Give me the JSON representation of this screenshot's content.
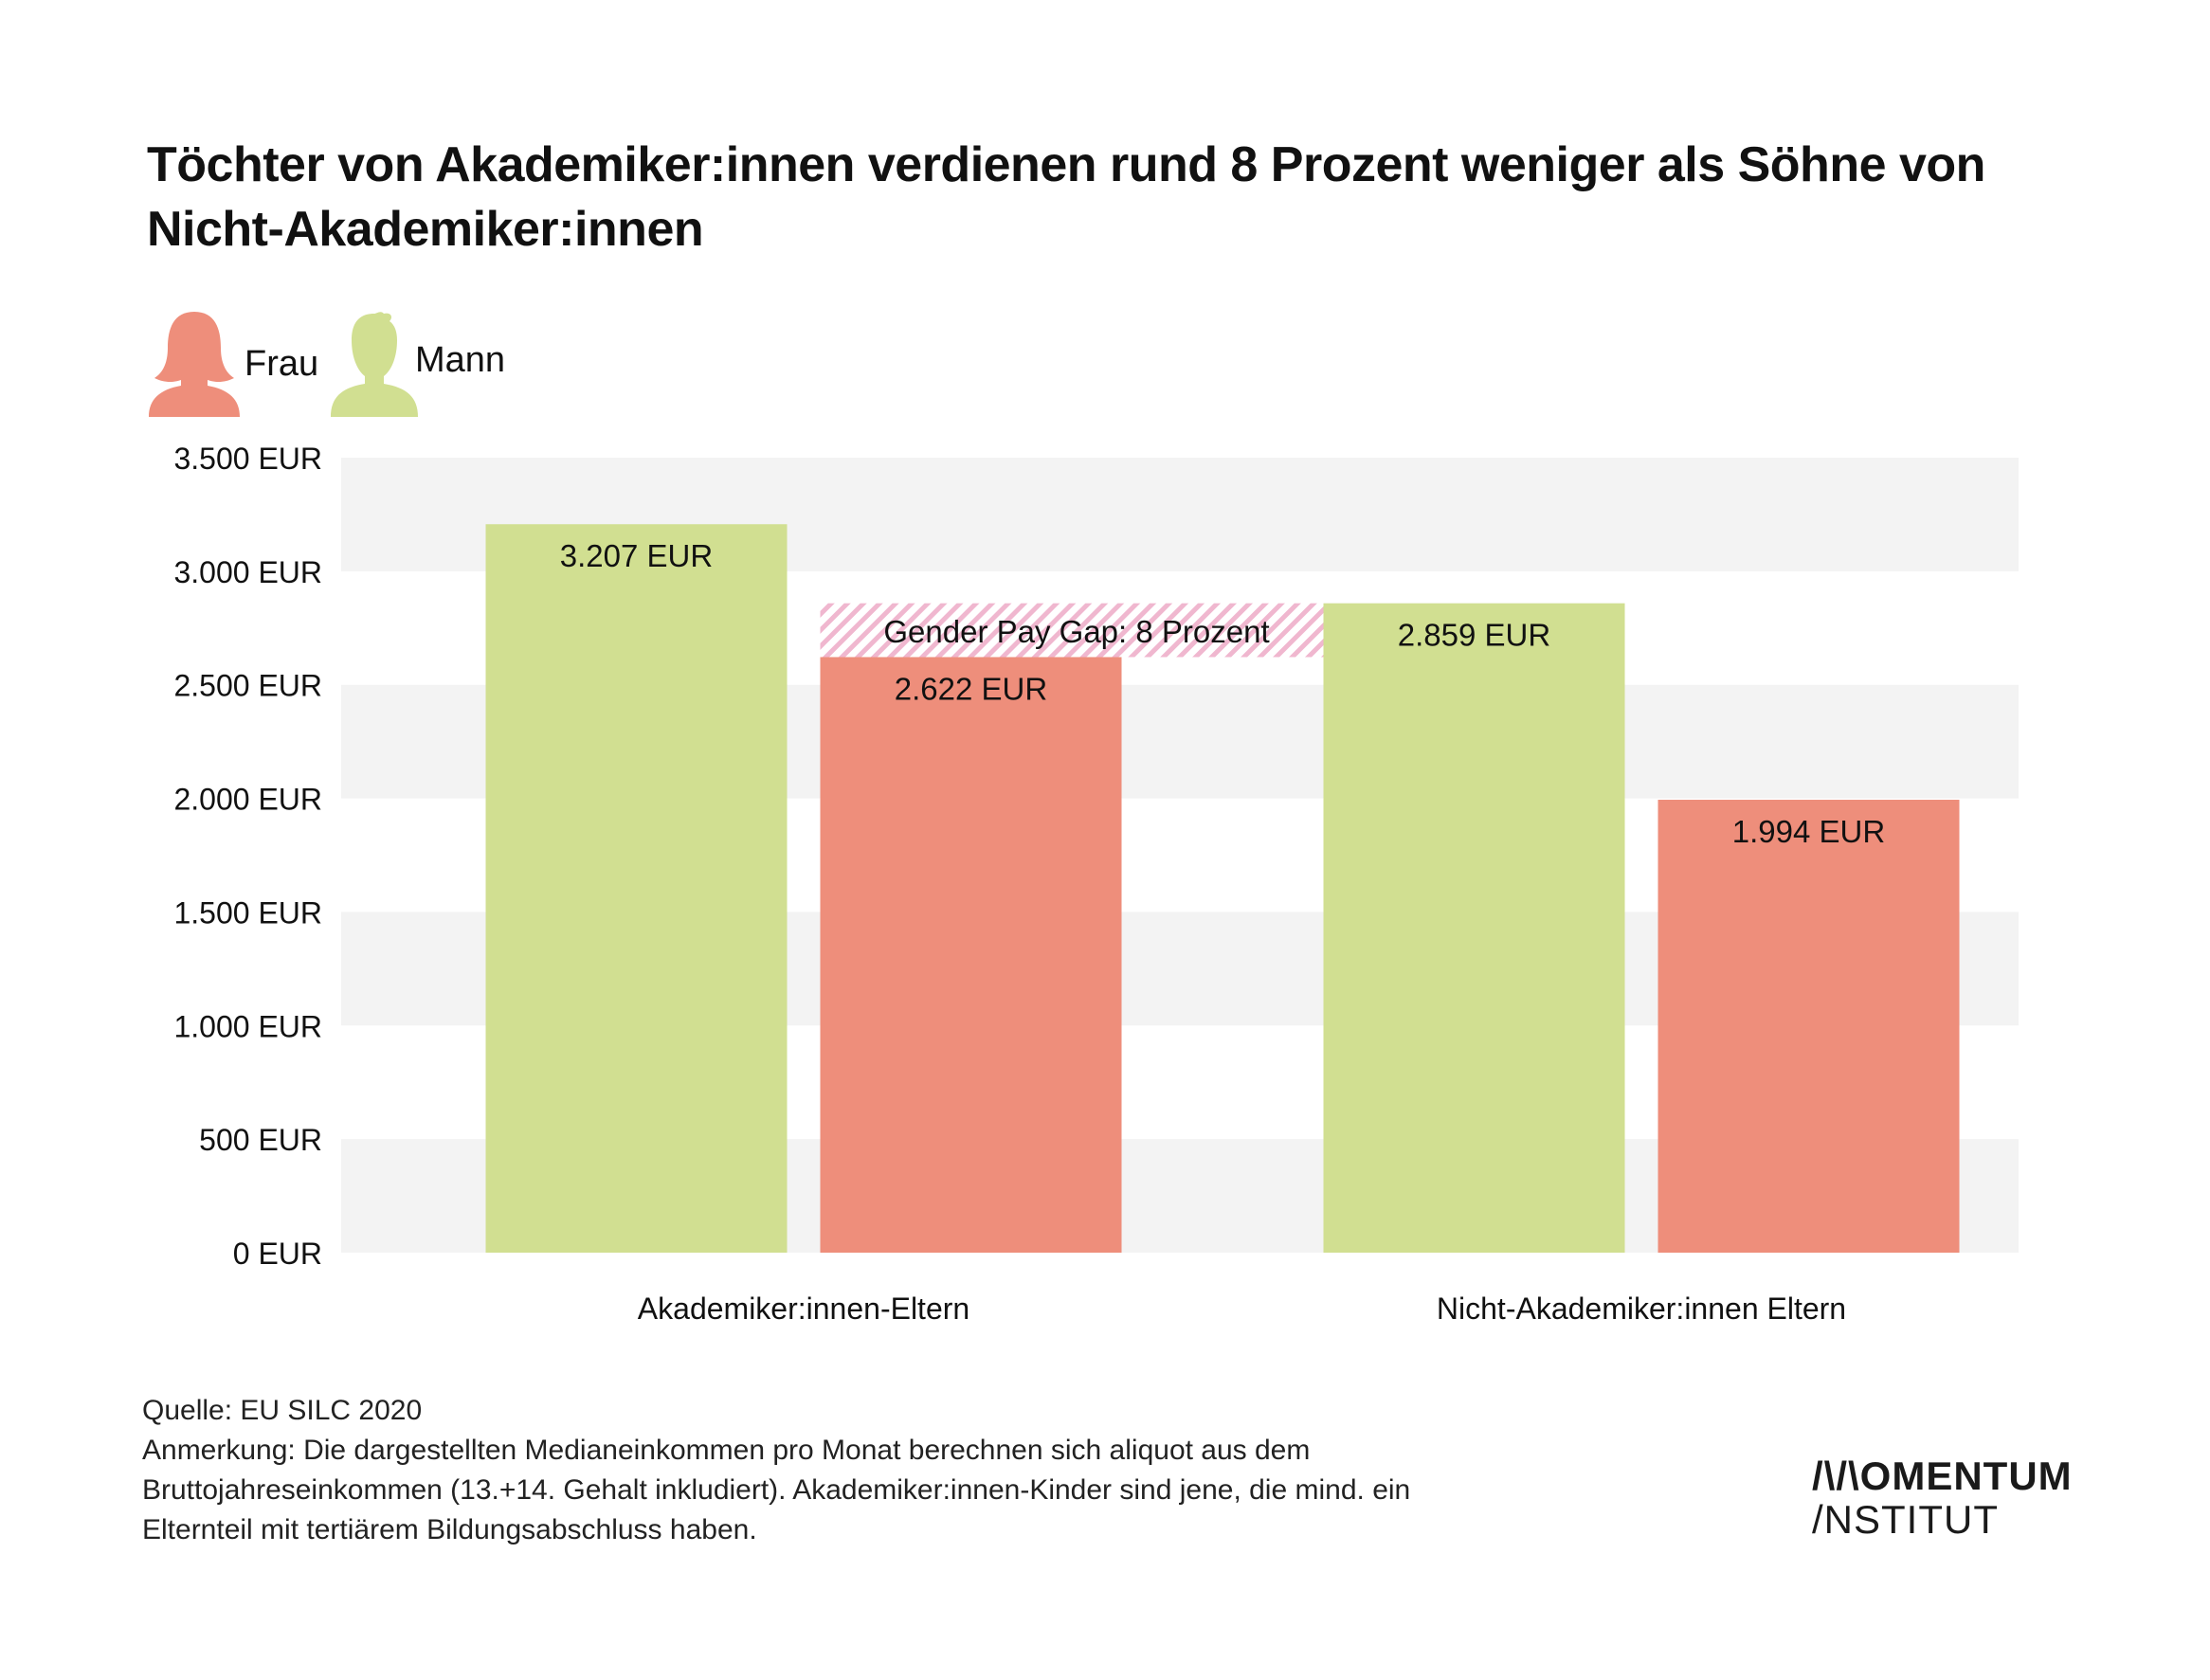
{
  "title": "Töchter von Akademiker:innen verdienen rund 8 Prozent weniger als Söhne von Nicht-Akademiker:innen",
  "legend": [
    {
      "label": "Frau",
      "color": "#ee8e7b",
      "icon": "woman-icon"
    },
    {
      "label": "Mann",
      "color": "#d1df91",
      "icon": "man-icon"
    }
  ],
  "chart_data": {
    "type": "bar",
    "categories": [
      "Akademiker:innen-Eltern",
      "Nicht-Akademiker:innen Eltern"
    ],
    "series": [
      {
        "name": "Mann",
        "color": "#d1df91",
        "values": [
          3207,
          2859
        ],
        "labels": [
          "3.207 EUR",
          "2.859 EUR"
        ]
      },
      {
        "name": "Frau",
        "color": "#ee8e7b",
        "values": [
          2622,
          1994
        ],
        "labels": [
          "2.622 EUR",
          "1.994 EUR"
        ]
      }
    ],
    "ylim": [
      0,
      3500
    ],
    "yticks": [
      0,
      500,
      1000,
      1500,
      2000,
      2500,
      3000,
      3500
    ],
    "ytick_labels": [
      "0 EUR",
      "500 EUR",
      "1.000 EUR",
      "1.500 EUR",
      "2.000 EUR",
      "2.500 EUR",
      "3.000 EUR",
      "3.500 EUR"
    ],
    "grid": "alternating horizontal bands",
    "annotation": {
      "text": "Gender Pay Gap: 8 Prozent",
      "from_value": 2622,
      "to_value": 2859
    }
  },
  "notes": {
    "source": "Quelle: EU SILC 2020",
    "remark_lines": [
      "Anmerkung: Die dargestellten Medianeinkommen pro Monat berechnen sich aliquot aus dem",
      "Bruttojahreseinkommen (13.+14. Gehalt inkludiert). Akademiker:innen-Kinder sind jene, die mind. ein",
      "Elternteil mit tertiärem Bildungsabschluss haben."
    ]
  },
  "logo": {
    "line1": "/\\/\\OMENTUM",
    "line2": "/NSTITUT"
  }
}
